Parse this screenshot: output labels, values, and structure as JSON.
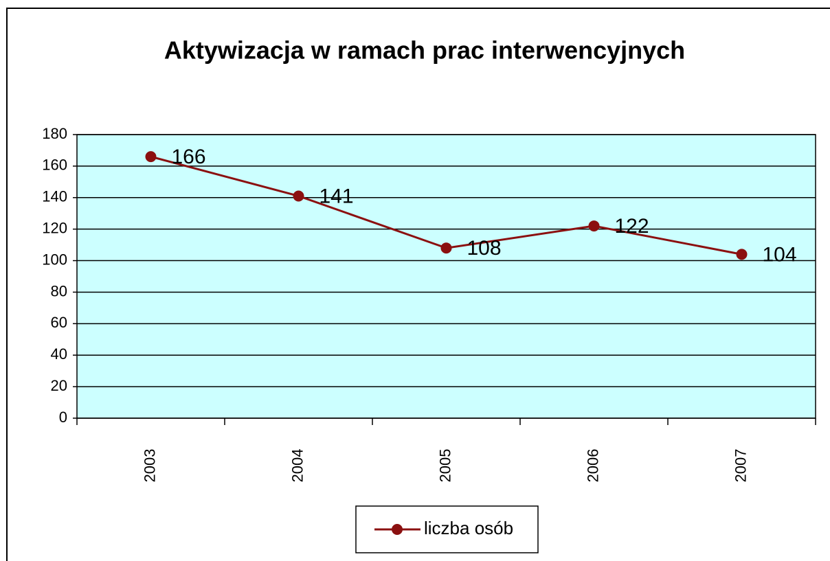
{
  "chart_data": {
    "type": "line",
    "title": "Aktywizacja w ramach prac interwencyjnych",
    "categories": [
      "2003",
      "2004",
      "2005",
      "2006",
      "2007"
    ],
    "series": [
      {
        "name": "liczba osób",
        "color": "#8b1010",
        "values": [
          166,
          141,
          108,
          122,
          104
        ]
      }
    ],
    "ylim": [
      0,
      180
    ],
    "yticks": [
      0,
      20,
      40,
      60,
      80,
      100,
      120,
      140,
      160,
      180
    ],
    "grid": true,
    "legend": "bottom",
    "plot_background": "#ccffff"
  }
}
